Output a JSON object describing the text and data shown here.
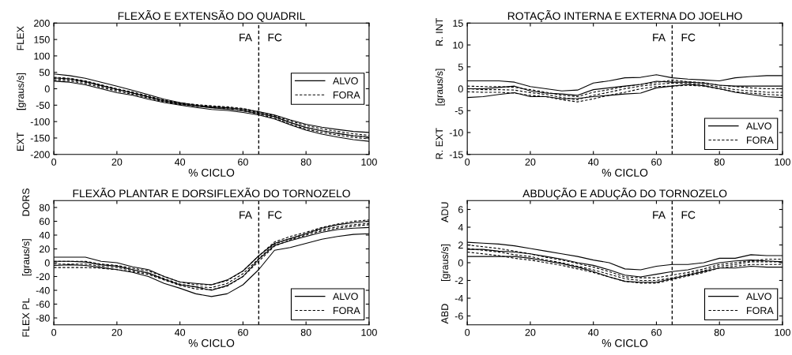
{
  "chart_data": [
    {
      "type": "line",
      "title": "FLEXÃO E EXTENSÃO DO QUADRIL",
      "xlabel": "% CICLO",
      "ylabel": "EXT        [graus/s]        FLEX",
      "x": [
        0,
        5,
        10,
        15,
        20,
        25,
        30,
        35,
        40,
        45,
        50,
        55,
        60,
        65,
        70,
        75,
        80,
        85,
        90,
        95,
        100
      ],
      "xlim": [
        0,
        100
      ],
      "xticks": [
        0,
        20,
        40,
        60,
        80,
        100
      ],
      "ylim": [
        -200,
        200
      ],
      "yticks": [
        -200,
        -150,
        -100,
        -50,
        0,
        50,
        100,
        150,
        200
      ],
      "legend": "right",
      "ref_lines": [
        {
          "axis": "x",
          "value": 65,
          "line_style": "dashed",
          "color": "#000000"
        }
      ],
      "annotations": [
        "FA",
        "FC"
      ],
      "series": [
        {
          "name": "ALVO",
          "color": "#000000",
          "line_style": "solid",
          "values": [
            33,
            30,
            22,
            10,
            -2,
            -13,
            -25,
            -37,
            -46,
            -53,
            -58,
            -62,
            -67,
            -75,
            -85,
            -103,
            -118,
            -128,
            -136,
            -143,
            -147
          ]
        },
        {
          "color": "#000000",
          "line_style": "solid",
          "values": [
            45,
            40,
            32,
            20,
            8,
            -5,
            -18,
            -32,
            -42,
            -50,
            -55,
            -58,
            -62,
            -70,
            -80,
            -95,
            -108,
            -117,
            -124,
            -130,
            -133
          ]
        },
        {
          "color": "#000000",
          "line_style": "solid",
          "values": [
            23,
            20,
            12,
            0,
            -12,
            -20,
            -32,
            -42,
            -50,
            -57,
            -63,
            -66,
            -72,
            -80,
            -92,
            -110,
            -126,
            -138,
            -147,
            -155,
            -160
          ]
        },
        {
          "name": "FORA",
          "color": "#000000",
          "line_style": "dashed",
          "values": [
            31,
            28,
            20,
            8,
            -3,
            -13,
            -25,
            -37,
            -45,
            -50,
            -54,
            -57,
            -63,
            -73,
            -86,
            -103,
            -118,
            -128,
            -136,
            -143,
            -148
          ]
        },
        {
          "color": "#000000",
          "line_style": "dashed",
          "values": [
            35,
            32,
            24,
            12,
            0,
            -10,
            -22,
            -35,
            -43,
            -48,
            -52,
            -55,
            -60,
            -70,
            -82,
            -98,
            -112,
            -122,
            -130,
            -137,
            -142
          ]
        },
        {
          "color": "#000000",
          "line_style": "dashed",
          "values": [
            27,
            24,
            16,
            4,
            -7,
            -17,
            -28,
            -40,
            -48,
            -53,
            -57,
            -61,
            -67,
            -77,
            -90,
            -108,
            -123,
            -133,
            -141,
            -148,
            -153
          ]
        }
      ]
    },
    {
      "type": "line",
      "title": "ROTAÇÃO INTERNA E EXTERNA DO JOELHO",
      "xlabel": "% CICLO",
      "ylabel": "R. EXT        [graus/s]        R. INT",
      "x": [
        0,
        5,
        10,
        15,
        20,
        25,
        30,
        35,
        40,
        45,
        50,
        55,
        60,
        65,
        70,
        75,
        80,
        85,
        90,
        95,
        100
      ],
      "xlim": [
        0,
        100
      ],
      "xticks": [
        0,
        20,
        40,
        60,
        80,
        100
      ],
      "ylim": [
        -15,
        15
      ],
      "yticks": [
        -15,
        -10,
        -5,
        0,
        5,
        10,
        15
      ],
      "legend": "bottom right",
      "ref_lines": [
        {
          "axis": "x",
          "value": 65,
          "line_style": "dashed",
          "color": "#000000"
        }
      ],
      "annotations": [
        "FA",
        "FC"
      ],
      "series": [
        {
          "name": "ALVO",
          "color": "#000000",
          "line_style": "solid",
          "values": [
            0,
            0,
            0.3,
            0.6,
            -0.5,
            -1,
            -1.2,
            -1.5,
            -0.2,
            0.2,
            0.6,
            1,
            1.7,
            1.5,
            1.5,
            1.3,
            0.8,
            0.6,
            0.6,
            0.6,
            0.6
          ]
        },
        {
          "color": "#000000",
          "line_style": "solid",
          "values": [
            1.8,
            1.8,
            1.8,
            1.5,
            0.5,
            0,
            -0.5,
            -0.3,
            1.3,
            1.8,
            2.5,
            2.6,
            3.2,
            2.5,
            2.2,
            2,
            1.8,
            2.5,
            2.8,
            3,
            3
          ]
        },
        {
          "color": "#000000",
          "line_style": "solid",
          "values": [
            -2,
            -1.8,
            -1.3,
            -0.9,
            -1.8,
            -1.8,
            -2.3,
            -2.2,
            -1.8,
            -1.5,
            -1.2,
            -1,
            0.2,
            0.6,
            1,
            0.7,
            0,
            -0.8,
            -1.3,
            -1.8,
            -2
          ]
        },
        {
          "name": "FORA",
          "color": "#000000",
          "line_style": "dashed",
          "values": [
            0,
            -0.2,
            -0.2,
            -0.3,
            -0.9,
            -1.3,
            -2,
            -2.5,
            -1.5,
            -0.8,
            0,
            0.6,
            1,
            1.3,
            1.2,
            1,
            0.4,
            -0.2,
            -0.5,
            -0.8,
            -0.8
          ]
        },
        {
          "color": "#000000",
          "line_style": "dashed",
          "values": [
            0.6,
            0.5,
            0.5,
            0.3,
            -0.2,
            -0.8,
            -1.5,
            -1.8,
            -0.8,
            -0.2,
            0.5,
            1,
            1.4,
            2,
            1.6,
            1.4,
            0.8,
            0.5,
            0.2,
            0,
            0
          ]
        },
        {
          "color": "#000000",
          "line_style": "dashed",
          "values": [
            -0.7,
            -0.8,
            -0.8,
            -1,
            -1.5,
            -1.8,
            -2.5,
            -3,
            -2.3,
            -1.5,
            -0.8,
            0,
            0.5,
            0.6,
            0.8,
            0.6,
            0,
            -0.7,
            -1,
            -1.3,
            -1.5
          ]
        }
      ]
    },
    {
      "type": "line",
      "title": "FLEXÃO PLANTAR E DORSIFLEXÃO DO TORNOZELO",
      "xlabel": "% CICLO",
      "ylabel": "FLEX PL        [graus/s]        DORS",
      "x": [
        0,
        5,
        10,
        15,
        20,
        25,
        30,
        35,
        40,
        45,
        50,
        55,
        60,
        65,
        70,
        75,
        80,
        85,
        90,
        95,
        100
      ],
      "xlim": [
        0,
        100
      ],
      "xticks": [
        0,
        20,
        40,
        60,
        80,
        100
      ],
      "ylim": [
        -90,
        90
      ],
      "yticks": [
        -80,
        -60,
        -40,
        -20,
        0,
        20,
        40,
        60,
        80
      ],
      "legend": "bottom right",
      "ref_lines": [
        {
          "axis": "x",
          "value": 65,
          "line_style": "dashed",
          "color": "#000000"
        }
      ],
      "annotations": [
        "FA",
        "FC"
      ],
      "series": [
        {
          "name": "ALVO",
          "color": "#000000",
          "line_style": "solid",
          "values": [
            2,
            2,
            1,
            -3,
            -5,
            -10,
            -15,
            -24,
            -32,
            -35,
            -40,
            -33,
            -20,
            5,
            25,
            32,
            38,
            44,
            48,
            50,
            51
          ]
        },
        {
          "color": "#000000",
          "line_style": "solid",
          "values": [
            8,
            8,
            8,
            2,
            0,
            -6,
            -10,
            -20,
            -28,
            -30,
            -32,
            -25,
            -12,
            10,
            28,
            35,
            42,
            50,
            55,
            58,
            60
          ]
        },
        {
          "color": "#000000",
          "line_style": "solid",
          "values": [
            -4,
            -3,
            -4,
            -7,
            -10,
            -14,
            -20,
            -30,
            -37,
            -45,
            -49,
            -45,
            -32,
            -10,
            18,
            22,
            28,
            34,
            38,
            41,
            42
          ]
        },
        {
          "name": "FORA",
          "color": "#000000",
          "line_style": "dashed",
          "values": [
            -2,
            -2,
            -2,
            -5,
            -7,
            -11,
            -15,
            -23,
            -31,
            -35,
            -36,
            -30,
            -16,
            6,
            27,
            35,
            42,
            48,
            52,
            55,
            57
          ]
        },
        {
          "color": "#000000",
          "line_style": "dashed",
          "values": [
            2,
            2,
            2,
            -2,
            -4,
            -8,
            -12,
            -20,
            -28,
            -32,
            -32,
            -26,
            -12,
            10,
            30,
            38,
            44,
            51,
            56,
            60,
            62
          ]
        },
        {
          "color": "#000000",
          "line_style": "dashed",
          "values": [
            -7,
            -7,
            -7,
            -8,
            -10,
            -13,
            -17,
            -25,
            -33,
            -38,
            -39,
            -34,
            -20,
            2,
            24,
            33,
            40,
            46,
            50,
            53,
            55
          ]
        }
      ]
    },
    {
      "type": "line",
      "title": "ABDUÇÃO E ADUÇÃO DO TORNOZELO",
      "xlabel": "% CICLO",
      "ylabel": "ABD        [graus/s]        ADU",
      "x": [
        0,
        5,
        10,
        15,
        20,
        25,
        30,
        35,
        40,
        45,
        50,
        55,
        60,
        65,
        70,
        75,
        80,
        85,
        90,
        95,
        100
      ],
      "xlim": [
        0,
        100
      ],
      "xticks": [
        0,
        20,
        40,
        60,
        80,
        100
      ],
      "ylim": [
        -7,
        7
      ],
      "yticks": [
        -6,
        -4,
        -2,
        0,
        2,
        4,
        6
      ],
      "legend": "bottom right",
      "ref_lines": [
        {
          "axis": "x",
          "value": 65,
          "line_style": "dashed",
          "color": "#000000"
        }
      ],
      "annotations": [
        "FA",
        "FC"
      ],
      "series": [
        {
          "name": "ALVO",
          "color": "#000000",
          "line_style": "solid",
          "values": [
            1.5,
            1.5,
            1.3,
            1.2,
            1,
            0.7,
            0.4,
            0,
            -0.3,
            -0.8,
            -1.4,
            -1.6,
            -1.3,
            -1,
            -0.8,
            -0.4,
            0,
            0.2,
            0.3,
            0.2,
            0.1
          ]
        },
        {
          "color": "#000000",
          "line_style": "solid",
          "values": [
            2.3,
            2.2,
            2.1,
            1.9,
            1.6,
            1.3,
            1,
            0.7,
            0.3,
            0,
            -0.7,
            -0.8,
            -0.4,
            -0.2,
            -0.2,
            0,
            0.5,
            0.5,
            0.9,
            0.8,
            0.8
          ]
        },
        {
          "color": "#000000",
          "line_style": "solid",
          "values": [
            0.7,
            0.7,
            0.7,
            0.7,
            0.5,
            0.2,
            -0.1,
            -0.5,
            -1,
            -1.6,
            -2.1,
            -2.2,
            -2.2,
            -1.8,
            -1.4,
            -1,
            -0.6,
            -0.6,
            -0.4,
            -0.5,
            -0.5
          ]
        },
        {
          "name": "FORA",
          "color": "#000000",
          "line_style": "dashed",
          "values": [
            1.6,
            1.4,
            1.2,
            0.9,
            0.7,
            0.3,
            0,
            -0.4,
            -0.8,
            -1.3,
            -1.8,
            -2,
            -2,
            -1.7,
            -1.3,
            -0.9,
            -0.4,
            -0.2,
            0.1,
            0.1,
            0.1
          ]
        },
        {
          "color": "#000000",
          "line_style": "dashed",
          "values": [
            2,
            1.8,
            1.6,
            1.3,
            1,
            0.6,
            0.3,
            -0.1,
            -0.5,
            -1,
            -1.6,
            -1.7,
            -1.7,
            -1.4,
            -1.1,
            -0.7,
            -0.2,
            0,
            0.2,
            0.4,
            0.4
          ]
        },
        {
          "color": "#000000",
          "line_style": "dashed",
          "values": [
            1.2,
            1,
            0.8,
            0.5,
            0.3,
            0,
            -0.3,
            -0.7,
            -1.1,
            -1.6,
            -2.1,
            -2.3,
            -2.3,
            -1.9,
            -1.5,
            -1.1,
            -0.6,
            -0.4,
            -0.2,
            -0.2,
            -0.2
          ]
        }
      ]
    }
  ]
}
